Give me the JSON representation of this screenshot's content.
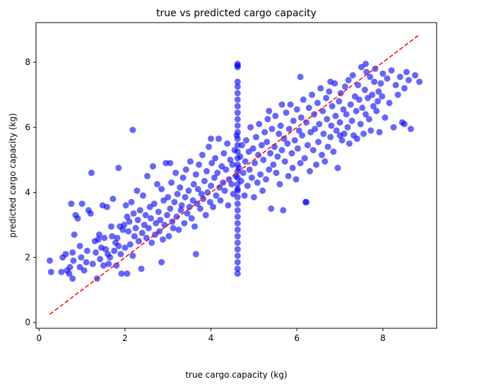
{
  "chart_data": {
    "type": "scatter",
    "title": "true vs predicted cargo capacity",
    "xlabel": "true cargo capacity (kg)",
    "ylabel": "predicted cargo capacity (kg)",
    "xlim": [
      -0.07,
      9.25
    ],
    "ylim": [
      -0.18,
      9.22
    ],
    "x_ticks": [
      0,
      2,
      4,
      6,
      8
    ],
    "y_ticks": [
      0,
      2,
      4,
      6,
      8
    ],
    "grid": false,
    "series": [
      {
        "color": "#0000ff",
        "alpha": 0.6,
        "marker": "circle",
        "x": [
          0.25,
          0.28,
          0.52,
          0.55,
          0.62,
          0.65,
          0.7,
          0.72,
          0.75,
          0.78,
          0.8,
          0.82,
          0.85,
          0.9,
          0.95,
          0.98,
          1.0,
          1.05,
          1.1,
          1.12,
          1.15,
          1.2,
          1.25,
          1.3,
          1.32,
          1.35,
          1.38,
          1.4,
          1.42,
          1.45,
          1.48,
          1.5,
          1.52,
          1.55,
          1.58,
          1.6,
          1.62,
          1.65,
          1.68,
          1.7,
          1.72,
          1.75,
          1.78,
          1.8,
          1.82,
          1.85,
          1.88,
          1.9,
          1.92,
          1.95,
          1.98,
          2.0,
          2.02,
          2.05,
          2.08,
          2.1,
          2.12,
          2.15,
          2.18,
          2.2,
          2.22,
          2.25,
          2.28,
          2.3,
          2.32,
          2.35,
          2.38,
          2.4,
          2.42,
          2.45,
          2.48,
          2.5,
          2.52,
          2.55,
          2.58,
          2.6,
          2.62,
          2.65,
          2.68,
          2.7,
          2.72,
          2.75,
          2.78,
          2.8,
          2.82,
          2.85,
          2.88,
          2.9,
          2.92,
          2.95,
          2.98,
          3.0,
          3.02,
          3.05,
          3.08,
          3.1,
          3.12,
          3.15,
          3.18,
          3.2,
          3.22,
          3.25,
          3.28,
          3.3,
          3.32,
          3.35,
          3.38,
          3.4,
          3.42,
          3.45,
          3.48,
          3.5,
          3.52,
          3.55,
          3.58,
          3.6,
          3.62,
          3.65,
          3.68,
          3.7,
          3.72,
          3.75,
          3.78,
          3.8,
          3.82,
          3.85,
          3.88,
          3.9,
          3.92,
          3.95,
          3.98,
          4.0,
          4.02,
          4.05,
          4.08,
          4.1,
          4.12,
          4.15,
          4.18,
          4.2,
          4.22,
          4.25,
          4.28,
          4.3,
          4.32,
          4.35,
          4.38,
          4.4,
          4.42,
          4.45,
          4.48,
          4.5,
          4.52,
          4.55,
          4.58,
          4.6,
          4.62,
          4.62,
          4.62,
          4.62,
          4.62,
          4.62,
          4.62,
          4.62,
          4.62,
          4.62,
          4.62,
          4.62,
          4.62,
          4.62,
          4.62,
          4.62,
          4.62,
          4.62,
          4.62,
          4.62,
          4.62,
          4.62,
          4.62,
          4.62,
          4.62,
          4.62,
          4.62,
          4.62,
          4.62,
          4.62,
          4.62,
          4.62,
          4.62,
          4.62,
          4.62,
          4.65,
          4.68,
          4.7,
          4.72,
          4.75,
          4.78,
          4.8,
          4.82,
          4.85,
          4.88,
          4.9,
          4.92,
          4.95,
          4.98,
          5.0,
          5.02,
          5.05,
          5.08,
          5.1,
          5.12,
          5.15,
          5.18,
          5.2,
          5.22,
          5.25,
          5.28,
          5.3,
          5.32,
          5.35,
          5.38,
          5.4,
          5.42,
          5.45,
          5.48,
          5.5,
          5.52,
          5.55,
          5.58,
          5.6,
          5.62,
          5.65,
          5.68,
          5.7,
          5.72,
          5.75,
          5.78,
          5.8,
          5.82,
          5.85,
          5.88,
          5.9,
          5.92,
          5.95,
          5.98,
          6.0,
          6.02,
          6.05,
          6.08,
          6.1,
          6.12,
          6.15,
          6.18,
          6.2,
          6.22,
          6.25,
          6.28,
          6.3,
          6.32,
          6.35,
          6.38,
          6.4,
          6.42,
          6.45,
          6.48,
          6.5,
          6.52,
          6.55,
          6.58,
          6.6,
          6.62,
          6.65,
          6.68,
          6.7,
          6.72,
          6.75,
          6.78,
          6.8,
          6.82,
          6.85,
          6.88,
          6.9,
          6.92,
          6.95,
          6.98,
          7.0,
          7.02,
          7.05,
          7.08,
          7.1,
          7.12,
          7.15,
          7.18,
          7.2,
          7.22,
          7.25,
          7.28,
          7.3,
          7.32,
          7.35,
          7.38,
          7.4,
          7.42,
          7.45,
          7.48,
          7.5,
          7.52,
          7.55,
          7.58,
          7.6,
          7.62,
          7.65,
          7.68,
          7.7,
          7.72,
          7.75,
          7.78,
          7.8,
          7.82,
          7.85,
          7.88,
          7.9,
          7.92,
          7.95,
          7.98,
          8.0,
          8.05,
          8.1,
          8.15,
          8.2,
          8.25,
          8.3,
          8.35,
          8.4,
          8.45,
          8.5,
          8.55,
          8.6,
          8.65,
          8.75,
          8.85,
          1.22,
          2.18,
          6.22,
          5.65,
          3.65,
          0.95,
          0.78,
          1.85,
          2.05,
          3.05,
          7.6,
          8.5,
          7.0,
          5.35,
          6.78,
          6.08,
          4.0,
          2.85
        ],
        "y": [
          1.9,
          1.55,
          1.55,
          2.0,
          2.1,
          1.6,
          1.5,
          1.7,
          3.65,
          1.35,
          1.9,
          2.7,
          3.3,
          3.2,
          1.7,
          2.0,
          3.65,
          1.6,
          1.85,
          2.2,
          3.45,
          3.35,
          1.8,
          2.5,
          2.15,
          1.35,
          2.55,
          2.7,
          1.95,
          2.3,
          3.6,
          1.75,
          2.6,
          2.25,
          3.55,
          2.1,
          1.8,
          2.0,
          2.95,
          2.65,
          3.8,
          2.2,
          2.45,
          1.75,
          2.6,
          2.35,
          2.95,
          2.1,
          1.5,
          2.85,
          3.0,
          2.3,
          3.6,
          3.25,
          2.8,
          3.1,
          2.4,
          3.7,
          2.05,
          3.35,
          2.65,
          2.9,
          4.05,
          3.15,
          2.5,
          3.45,
          1.65,
          2.75,
          3.9,
          3.0,
          3.3,
          2.6,
          4.5,
          2.9,
          3.55,
          3.2,
          2.45,
          4.8,
          3.65,
          2.7,
          3.05,
          4.25,
          3.4,
          2.8,
          3.15,
          4.1,
          2.55,
          3.75,
          3.0,
          4.9,
          3.3,
          3.85,
          2.65,
          3.5,
          4.3,
          3.1,
          2.9,
          3.7,
          4.6,
          3.25,
          3.95,
          2.85,
          4.15,
          3.45,
          3.6,
          4.45,
          3.05,
          3.85,
          4.7,
          3.35,
          4.05,
          3.55,
          4.95,
          3.2,
          3.75,
          4.25,
          2.95,
          4.55,
          3.65,
          4.1,
          4.85,
          3.5,
          3.95,
          5.15,
          3.8,
          4.35,
          3.3,
          4.65,
          4.0,
          5.4,
          3.7,
          4.2,
          4.9,
          3.55,
          4.45,
          5.05,
          3.9,
          4.6,
          5.65,
          4.15,
          3.75,
          4.8,
          4.3,
          5.2,
          4.05,
          4.7,
          5.5,
          3.6,
          4.4,
          5.0,
          4.25,
          4.85,
          3.95,
          5.3,
          4.5,
          5.75,
          4.1,
          1.5,
          1.65,
          1.85,
          2.05,
          2.25,
          2.45,
          2.65,
          2.85,
          3.05,
          3.25,
          3.45,
          3.65,
          3.85,
          4.05,
          4.25,
          4.45,
          4.65,
          4.85,
          5.05,
          5.25,
          5.45,
          5.65,
          5.85,
          6.05,
          6.25,
          6.45,
          6.65,
          6.85,
          7.05,
          7.25,
          7.4,
          7.85,
          7.9,
          7.95,
          4.75,
          5.1,
          4.35,
          5.45,
          4.6,
          3.9,
          4.95,
          5.6,
          4.2,
          5.25,
          4.7,
          6.0,
          4.45,
          5.35,
          3.85,
          4.9,
          5.7,
          4.3,
          5.15,
          6.1,
          4.55,
          5.45,
          4.05,
          5.0,
          5.85,
          4.4,
          5.55,
          6.25,
          4.7,
          5.2,
          3.5,
          5.95,
          4.85,
          5.4,
          6.35,
          4.6,
          5.1,
          5.8,
          4.25,
          6.05,
          5.3,
          3.45,
          5.65,
          4.95,
          6.45,
          5.5,
          4.5,
          5.95,
          6.7,
          5.2,
          4.75,
          6.2,
          5.6,
          4.4,
          6.55,
          5.35,
          5.9,
          4.9,
          6.3,
          5.75,
          6.85,
          5.05,
          3.7,
          6.15,
          5.45,
          6.6,
          4.65,
          5.85,
          7.0,
          5.3,
          6.4,
          5.95,
          4.85,
          6.75,
          5.55,
          6.1,
          7.2,
          5.15,
          6.5,
          5.8,
          4.95,
          6.9,
          6.25,
          5.4,
          7.1,
          5.7,
          6.05,
          6.65,
          5.25,
          7.35,
          6.35,
          5.9,
          4.75,
          6.8,
          6.15,
          7.05,
          5.6,
          6.55,
          5.8,
          7.25,
          6.4,
          6.0,
          7.45,
          5.5,
          6.7,
          6.2,
          7.6,
          5.75,
          6.95,
          6.5,
          5.65,
          7.3,
          6.85,
          6.1,
          7.85,
          6.6,
          5.8,
          7.15,
          6.4,
          7.7,
          6.9,
          6.25,
          7.55,
          5.9,
          7.0,
          6.65,
          7.4,
          7.8,
          6.5,
          6.8,
          7.1,
          5.85,
          7.35,
          6.95,
          7.65,
          6.3,
          7.5,
          6.75,
          7.75,
          6.0,
          7.3,
          7.0,
          7.55,
          6.15,
          7.2,
          7.7,
          7.45,
          5.95,
          7.6,
          7.4,
          4.6,
          5.92,
          3.7,
          6.7,
          2.1,
          2.35,
          2.15,
          4.75,
          1.5,
          4.9,
          7.95,
          6.1,
          5.75,
          6.5,
          7.4,
          7.55,
          5.65,
          1.85
        ]
      },
      {
        "color": "#ff0000",
        "style": "dashed",
        "x": [
          0.25,
          8.85
        ],
        "y": [
          0.25,
          8.85
        ]
      }
    ]
  }
}
